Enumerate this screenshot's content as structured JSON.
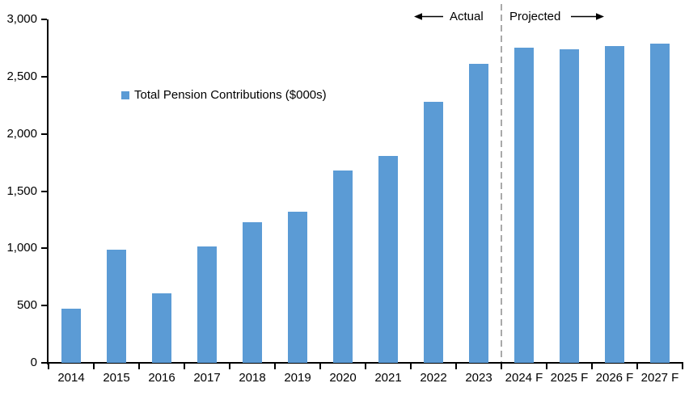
{
  "chart_data": {
    "type": "bar",
    "title": "",
    "categories": [
      "2014",
      "2015",
      "2016",
      "2017",
      "2018",
      "2019",
      "2020",
      "2021",
      "2022",
      "2023",
      "2024 F",
      "2025 F",
      "2026 F",
      "2027 F"
    ],
    "series": [
      {
        "name": "Total Pension Contributions ($000s)",
        "values": [
          470,
          990,
          610,
          1020,
          1230,
          1320,
          1680,
          1810,
          2280,
          2610,
          2750,
          2740,
          2770,
          2790
        ]
      }
    ],
    "ylim": [
      0,
      3000
    ],
    "yticks": [
      0,
      500,
      1000,
      1500,
      2000,
      2500,
      3000
    ],
    "ytick_labels": [
      "0",
      "500",
      "1,000",
      "1,500",
      "2,000",
      "2,500",
      "3,000"
    ],
    "xlabel": "",
    "ylabel": "",
    "grid": false,
    "legend_position": "inside-top-left",
    "bar_color": "#5B9BD5",
    "axis_color": "#000000",
    "divider_after_index": 10,
    "divider_color": "#A9A9A9",
    "annotations": {
      "actual_label": "Actual",
      "projected_label": "Projected"
    }
  }
}
